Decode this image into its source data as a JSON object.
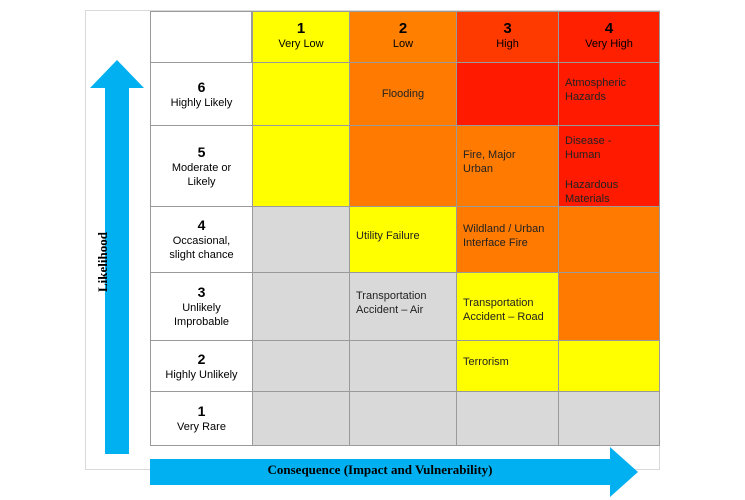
{
  "colors": {
    "very_low": "#ffff00",
    "low": "#ff8000",
    "high": "#ff4000",
    "very_high": "#ff2400",
    "grey": "#d9d9d9",
    "yellow_cell": "#ffff00",
    "orange_cell": "#ff7a00",
    "red_cell": "#ff1a00",
    "arrow": "#00b0f0"
  },
  "axes": {
    "likelihood": "Likelihood",
    "consequence": "Consequence (Impact and Vulnerability)"
  },
  "columns": [
    {
      "num": "1",
      "label": "Very Low"
    },
    {
      "num": "2",
      "label": "Low"
    },
    {
      "num": "3",
      "label": "High"
    },
    {
      "num": "4",
      "label": "Very High"
    }
  ],
  "rows": [
    {
      "num": "6",
      "label": "Highly Likely"
    },
    {
      "num": "5",
      "label": "Moderate or Likely"
    },
    {
      "num": "4",
      "label": "Occasional, slight chance"
    },
    {
      "num": "3",
      "label": "Unlikely Improbable"
    },
    {
      "num": "2",
      "label": "Highly Unlikely"
    },
    {
      "num": "1",
      "label": "Very Rare"
    }
  ],
  "cells": {
    "r6c2": "Flooding",
    "r6c4": "Atmospheric Hazards",
    "r5c3": "Fire, Major Urban",
    "r5c4_a": "Disease - Human",
    "r5c4_b": "Hazardous Materials",
    "r4c2": "Utility Failure",
    "r4c3": "Wildland / Urban Interface Fire",
    "r3c2": "Transportation Accident – Air",
    "r3c3": "Transportation Accident – Road",
    "r2c3": "Terrorism"
  }
}
